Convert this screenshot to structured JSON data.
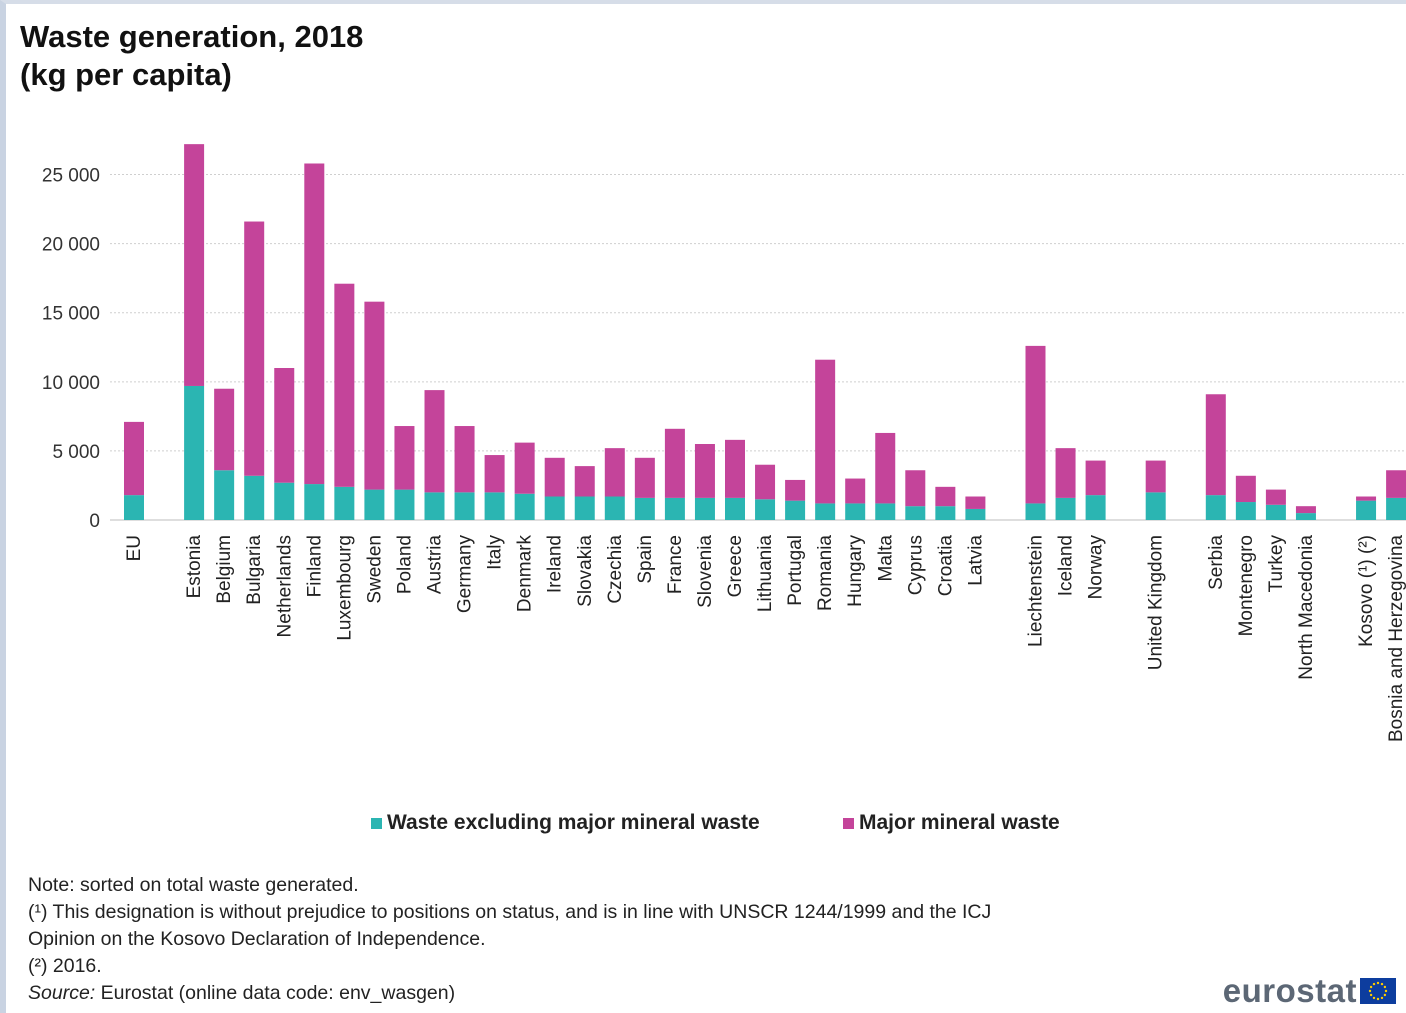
{
  "header": {
    "title_line1": "Waste generation, 2018",
    "title_line2": "(kg per capita)"
  },
  "chart_data": {
    "type": "bar",
    "stacked": true,
    "title": "Waste generation, 2018 (kg per capita)",
    "ylim": [
      0,
      27500
    ],
    "yticks": [
      0,
      5000,
      10000,
      15000,
      20000,
      25000
    ],
    "ytick_labels": [
      "0",
      "5 000",
      "10 000",
      "15 000",
      "20 000",
      "25 000"
    ],
    "grid": true,
    "legend_position": "bottom",
    "categories": [
      "EU",
      "Estonia",
      "Belgium",
      "Bulgaria",
      "Netherlands",
      "Finland",
      "Luxembourg",
      "Sweden",
      "Poland",
      "Austria",
      "Germany",
      "Italy",
      "Denmark",
      "Ireland",
      "Slovakia",
      "Czechia",
      "Spain",
      "France",
      "Slovenia",
      "Greece",
      "Lithuania",
      "Portugal",
      "Romania",
      "Hungary",
      "Malta",
      "Cyprus",
      "Croatia",
      "Latvia",
      "Liechtenstein",
      "Iceland",
      "Norway",
      "United Kingdom",
      "Serbia",
      "Montenegro",
      "Turkey",
      "North Macedonia",
      "Kosovo (¹) (²)",
      "Bosnia and Herzegovina"
    ],
    "groups": [
      1,
      27,
      3,
      1,
      4,
      2
    ],
    "series": [
      {
        "name": "Waste excluding major mineral waste",
        "color": "#2bb5b2",
        "values": [
          1800,
          9700,
          3600,
          3200,
          2700,
          2600,
          2400,
          2200,
          2200,
          2000,
          2000,
          2000,
          1900,
          1700,
          1700,
          1700,
          1600,
          1600,
          1600,
          1600,
          1500,
          1400,
          1200,
          1200,
          1200,
          1000,
          1000,
          800,
          1200,
          1600,
          1800,
          2000,
          1800,
          1300,
          1100,
          500,
          1400,
          1600
        ]
      },
      {
        "name": "Major mineral waste",
        "color": "#c4449a",
        "values": [
          5300,
          17500,
          5900,
          18400,
          8300,
          23200,
          14700,
          13600,
          4600,
          7400,
          4800,
          2700,
          3700,
          2800,
          2200,
          3500,
          2900,
          5000,
          3900,
          4200,
          2500,
          1500,
          10400,
          1800,
          5100,
          2600,
          1400,
          900,
          11400,
          3600,
          2500,
          2300,
          7300,
          1900,
          1100,
          500,
          300,
          2000
        ]
      }
    ]
  },
  "legend": {
    "item1": "Waste excluding major mineral waste",
    "item2": "Major mineral waste"
  },
  "notes": {
    "note": "Note: sorted on total waste generated.",
    "fn1_line1": "(¹) This designation is without prejudice to positions on status, and is in line with UNSCR 1244/1999 and the ICJ",
    "fn1_line2": "Opinion on the Kosovo Declaration of Independence.",
    "fn2": "(²) 2016.",
    "source_label": "Source:",
    "source_text": " Eurostat (online data code: env_wasgen)"
  },
  "brand": {
    "name": "eurostat",
    "logo": "eu-flag-icon"
  }
}
